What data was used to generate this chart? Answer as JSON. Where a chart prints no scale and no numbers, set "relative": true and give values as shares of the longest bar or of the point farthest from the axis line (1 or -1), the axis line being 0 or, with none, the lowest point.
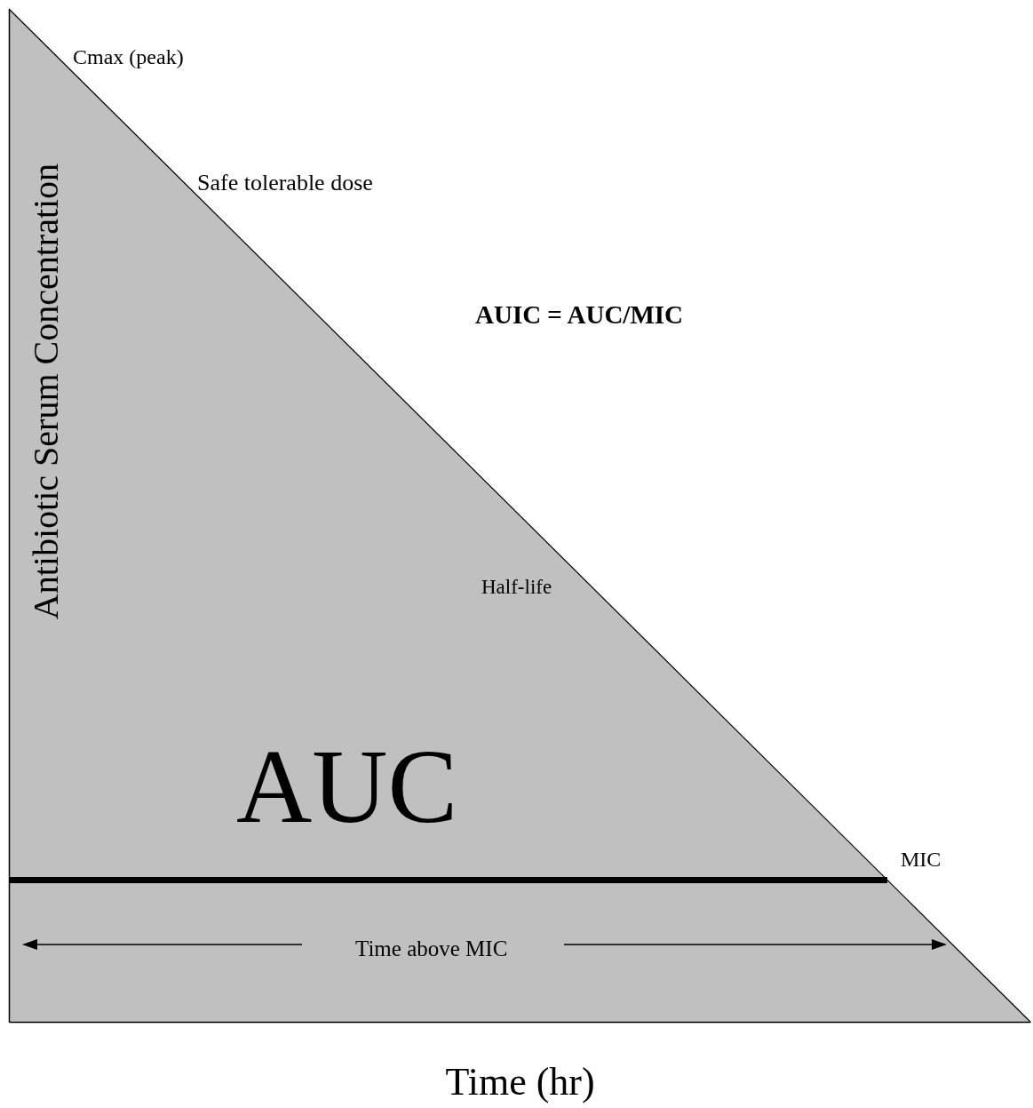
{
  "chart_data": {
    "type": "area",
    "relative": true,
    "xlabel": "Time (hr)",
    "ylabel": "Antibiotic Serum Concentration",
    "categories": [
      null,
      null
    ],
    "values": [
      1,
      0
    ],
    "color": "#c0c0c0",
    "ref_lines": [
      {
        "axis": "y",
        "value": 0.14,
        "label": "MIC",
        "color": "#000000"
      }
    ],
    "annotations": [
      "Cmax (peak)",
      "Safe tolerable dose",
      "AUIC = AUC/MIC",
      "Half-life",
      "AUC",
      "Time above MIC"
    ]
  }
}
